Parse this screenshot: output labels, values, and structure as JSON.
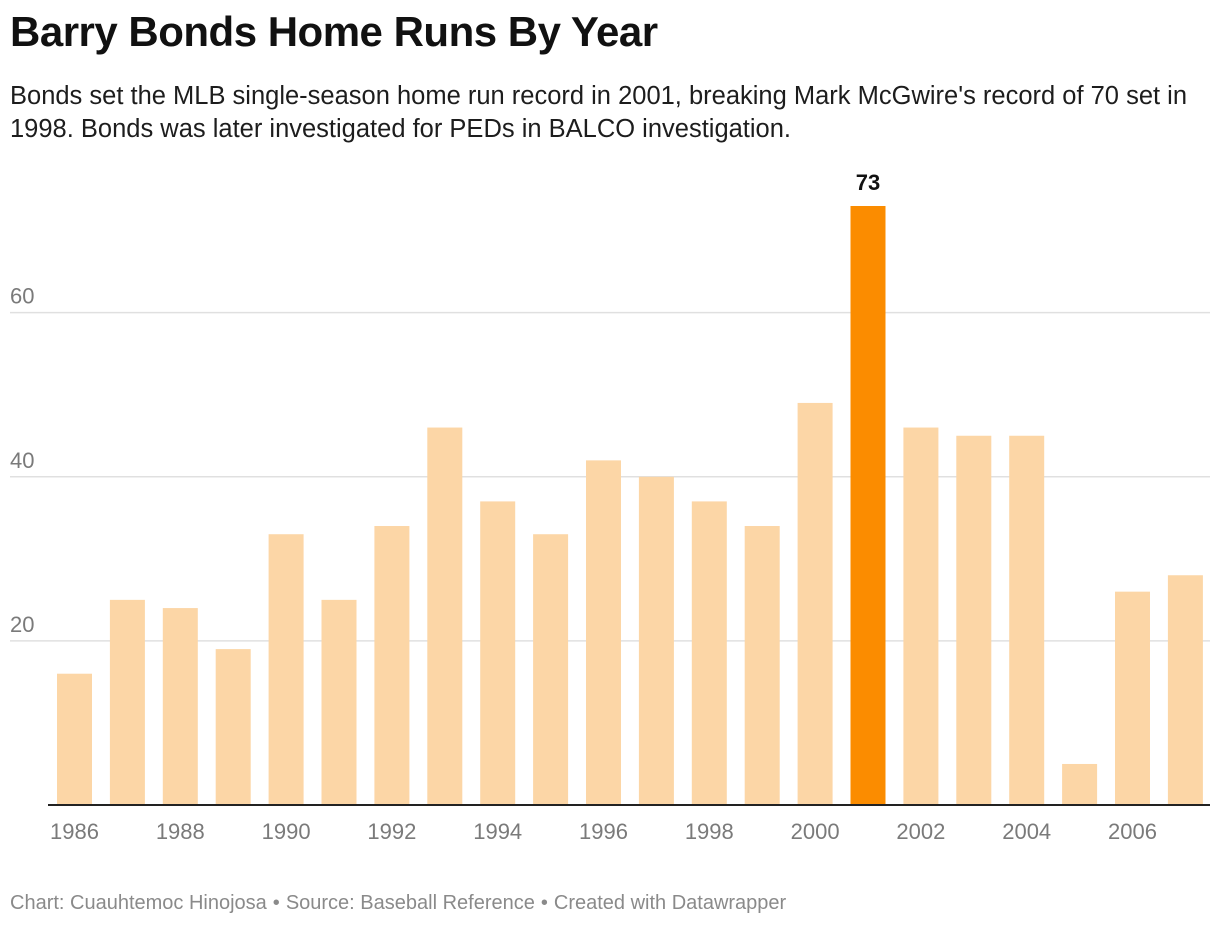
{
  "title": "Barry Bonds Home Runs By Year",
  "subtitle": "Bonds set the MLB single-season home run record in 2001, breaking Mark McGwire's record of 70 set in 1998. Bonds was later investigated for PEDs in BALCO investigation.",
  "footer": {
    "chart_by": "Chart: Cuauhtemoc Hinojosa",
    "source": "Source: Baseball Reference",
    "created": "Created with Datawrapper",
    "separator": "•"
  },
  "colors": {
    "bar": "#fcd6a6",
    "highlight": "#fb8c00",
    "grid": "#e0e0e0",
    "axis": "#222222"
  },
  "chart_data": {
    "type": "bar",
    "title": "Barry Bonds Home Runs By Year",
    "xlabel": "",
    "ylabel": "",
    "categories": [
      1986,
      1987,
      1988,
      1989,
      1990,
      1991,
      1992,
      1993,
      1994,
      1995,
      1996,
      1997,
      1998,
      1999,
      2000,
      2001,
      2002,
      2003,
      2004,
      2005,
      2006,
      2007
    ],
    "values": [
      16,
      25,
      24,
      19,
      33,
      25,
      34,
      46,
      37,
      33,
      42,
      40,
      37,
      34,
      49,
      73,
      46,
      45,
      45,
      5,
      26,
      28
    ],
    "highlight_category": 2001,
    "data_labels": [
      {
        "category": 2001,
        "text": "73"
      }
    ],
    "ylim": [
      0,
      73
    ],
    "yticks": [
      20,
      40,
      60
    ],
    "xtick_labels": [
      "1986",
      "1988",
      "1990",
      "1992",
      "1994",
      "1996",
      "1998",
      "2000",
      "2002",
      "2004",
      "2006"
    ],
    "grid": true,
    "legend": "none"
  }
}
